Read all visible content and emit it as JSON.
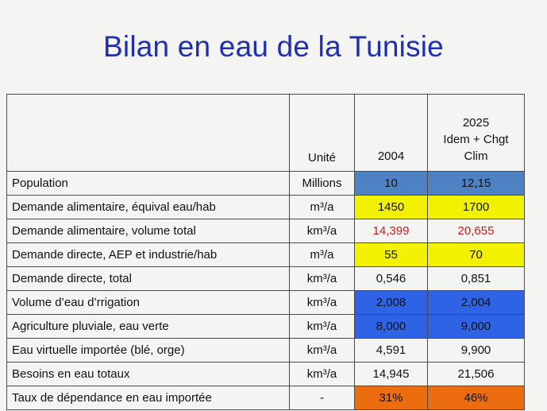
{
  "title": "Bilan en eau de la Tunisie",
  "table": {
    "headers": {
      "label": "",
      "unit": "Unité",
      "y2004": "2004",
      "y2025": [
        "2025",
        "Idem + Chgt",
        "Clim"
      ]
    },
    "rows": [
      {
        "label": "Population",
        "unit": "Millions",
        "v2004": "10",
        "v2025": "12,15",
        "bg2004": "#4f82c4",
        "bg2025": "#4f82c4",
        "color2004": "#111111",
        "color2025": "#111111",
        "bold": false
      },
      {
        "label": "Demande alimentaire, équival eau/hab",
        "unit": "m³/a",
        "v2004": "1450",
        "v2025": "1700",
        "bg2004": "#f2f200",
        "bg2025": "#f2f200",
        "color2004": "#111111",
        "color2025": "#111111",
        "bold": false
      },
      {
        "label": "Demande alimentaire, volume total",
        "unit": "km³/a",
        "v2004": "14,399",
        "v2025": "20,655",
        "bg2004": "transparent",
        "bg2025": "transparent",
        "color2004": "#cc1a1a",
        "color2025": "#cc1a1a",
        "bold": true
      },
      {
        "label": "Demande directe, AEP et industrie/hab",
        "unit": "m³/a",
        "v2004": "55",
        "v2025": "70",
        "bg2004": "#f2f200",
        "bg2025": "#f2f200",
        "color2004": "#111111",
        "color2025": "#111111",
        "bold": false
      },
      {
        "label": "Demande directe, total",
        "unit": "km³/a",
        "v2004": "0,546",
        "v2025": "0,851",
        "bg2004": "transparent",
        "bg2025": "transparent",
        "color2004": "#111111",
        "color2025": "#111111",
        "bold": false
      },
      {
        "label": "Volume d’eau d’rrigation",
        "unit": "km³/a",
        "v2004": "2,008",
        "v2025": "2,004",
        "bg2004": "#2e63e6",
        "bg2025": "#2e63e6",
        "color2004": "#111111",
        "color2025": "#111111",
        "bold": false
      },
      {
        "label": "Agriculture pluviale, eau verte",
        "unit": "km³/a",
        "v2004": "8,000",
        "v2025": "9,000",
        "bg2004": "#2e63e6",
        "bg2025": "#2e63e6",
        "color2004": "#111111",
        "color2025": "#111111",
        "bold": false
      },
      {
        "label": "Eau virtuelle importée (blé, orge)",
        "unit": "km³/a",
        "v2004": "4,591",
        "v2025": "9,900",
        "bg2004": "transparent",
        "bg2025": "transparent",
        "color2004": "#111111",
        "color2025": "#111111",
        "bold": true
      },
      {
        "label": "Besoins en eau totaux",
        "unit": "km³/a",
        "v2004": "14,945",
        "v2025": "21,506",
        "bg2004": "transparent",
        "bg2025": "transparent",
        "color2004": "#111111",
        "color2025": "#111111",
        "bold": false
      },
      {
        "label": "Taux de dépendance en eau importée",
        "unit": "-",
        "v2004": "31%",
        "v2025": "46%",
        "bg2004": "#ec6d10",
        "bg2025": "#ec6d10",
        "color2004": "#111111",
        "color2025": "#111111",
        "bold": false
      }
    ]
  }
}
